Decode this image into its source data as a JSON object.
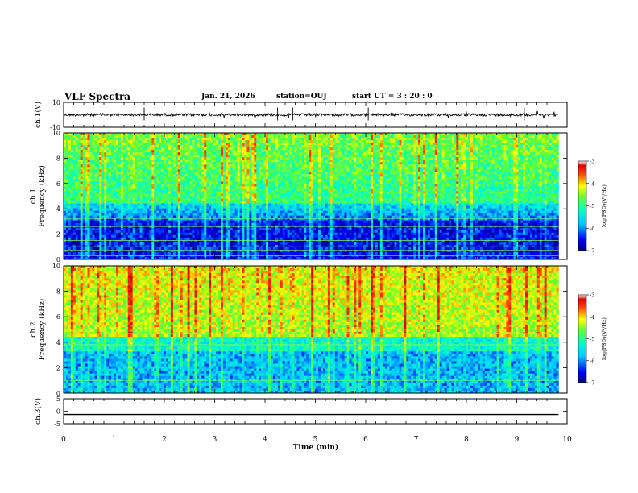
{
  "header": {
    "title": "VLF Spectra",
    "date": "Jan. 21, 2026",
    "station": "station=OUJ",
    "start": "start UT =  3 : 20 : 0"
  },
  "chart_data": [
    {
      "id": "ch1-waveform",
      "type": "line",
      "ylabel": "ch.1(V)",
      "ylim": [
        -10,
        10
      ],
      "yticks": [
        "10",
        "-10"
      ],
      "xlim": [
        0,
        10
      ],
      "baseline": 0
    },
    {
      "id": "ch1-spectrogram",
      "type": "heatmap",
      "ylabel_line1": "ch.1",
      "ylabel_line2": "Frequency (kHz)",
      "ylim": [
        0,
        10
      ],
      "yticks": [
        "0",
        "2",
        "4",
        "6",
        "8",
        "10"
      ],
      "xlim": [
        0,
        10
      ],
      "colorbar": {
        "label": "log(PSD)(V²/Hz)",
        "range": [
          -7,
          -3
        ],
        "ticks": [
          "-3",
          "-4",
          "-5",
          "-6",
          "-7"
        ]
      }
    },
    {
      "id": "ch2-spectrogram",
      "type": "heatmap",
      "ylabel_line1": "ch.2",
      "ylabel_line2": "Frequency (kHz)",
      "ylim": [
        0,
        10
      ],
      "yticks": [
        "0",
        "2",
        "4",
        "6",
        "8",
        "10"
      ],
      "xlim": [
        0,
        10
      ],
      "colorbar": {
        "label": "log(PSD)(V²/Hz)",
        "range": [
          -7,
          -3
        ],
        "ticks": [
          "-3",
          "-4",
          "-5",
          "-6",
          "-7"
        ]
      }
    },
    {
      "id": "ch3-waveform",
      "type": "line",
      "ylabel": "ch.3(V)",
      "ylim": [
        -5,
        5
      ],
      "yticks": [
        "5",
        "0",
        "-5"
      ],
      "xlim": [
        0,
        10
      ],
      "baseline": -1.3
    }
  ],
  "xaxis": {
    "label": "Time (min)",
    "ticks": [
      "0",
      "1",
      "2",
      "3",
      "4",
      "5",
      "6",
      "7",
      "8",
      "9",
      "10"
    ]
  }
}
